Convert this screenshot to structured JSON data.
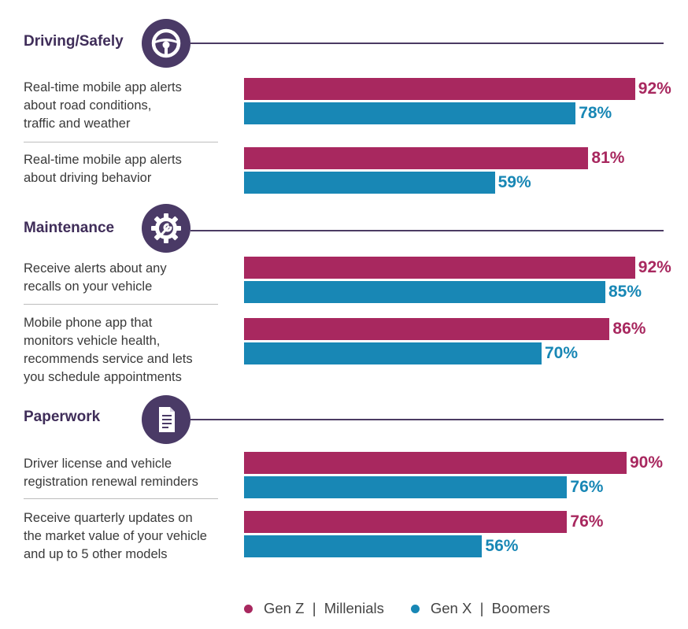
{
  "colors": {
    "genz_millennials": "#a8285f",
    "genx_boomers": "#1887b5",
    "section": "#4a3a66"
  },
  "chart_data": {
    "type": "bar",
    "orientation": "horizontal",
    "xlim": [
      0,
      100
    ],
    "unit": "%",
    "legend": "bottom",
    "series": [
      {
        "name": "Gen Z  |  Millenials"
      },
      {
        "name": "Gen X  |  Boomers"
      }
    ],
    "sections": [
      {
        "title": "Driving/Safely",
        "icon": "steering-wheel-icon",
        "items": [
          {
            "label": "Real-time mobile app alerts\nabout road conditions,\ntraffic and weather",
            "values": [
              92,
              78
            ],
            "labels": [
              "92%",
              "78%"
            ]
          },
          {
            "label": "Real-time mobile app alerts\nabout driving behavior",
            "values": [
              81,
              59
            ],
            "labels": [
              "81%",
              "59%"
            ]
          }
        ]
      },
      {
        "title": "Maintenance",
        "icon": "gear-wrench-icon",
        "items": [
          {
            "label": "Receive alerts about any\nrecalls on your vehicle",
            "values": [
              92,
              85
            ],
            "labels": [
              "92%",
              "85%"
            ]
          },
          {
            "label": "Mobile phone app that\nmonitors vehicle health,\nrecommends service and lets\nyou schedule appointments",
            "values": [
              86,
              70
            ],
            "labels": [
              "86%",
              "70%"
            ]
          }
        ]
      },
      {
        "title": "Paperwork",
        "icon": "document-icon",
        "items": [
          {
            "label": "Driver license and vehicle\nregistration renewal reminders",
            "values": [
              90,
              76
            ],
            "labels": [
              "90%",
              "76%"
            ]
          },
          {
            "label": "Receive quarterly updates on\nthe market value of your vehicle\nand up to 5 other models",
            "values": [
              76,
              56
            ],
            "labels": [
              "76%",
              "56%"
            ]
          }
        ]
      }
    ]
  }
}
